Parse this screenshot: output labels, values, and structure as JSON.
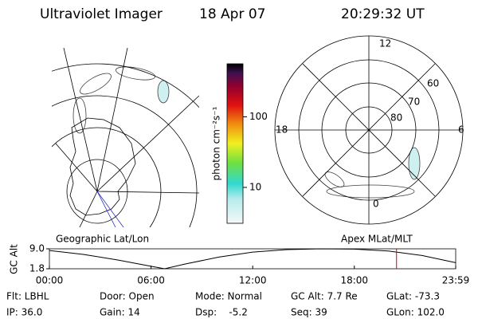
{
  "header": {
    "instrument": "Ultraviolet Imager",
    "date": "18 Apr 07",
    "time": "20:29:32 UT"
  },
  "colorbar": {
    "label": "photon cm⁻²s⁻¹",
    "clim": [
      3.1,
      565
    ],
    "scale": "log",
    "ticks": [
      {
        "value": 10,
        "label": "10"
      },
      {
        "value": 100,
        "label": "100"
      }
    ]
  },
  "polar_plot": {
    "mlt_labels": [
      "12",
      "18",
      "6",
      "0"
    ],
    "lat_labels": [
      "60",
      "70",
      "80"
    ]
  },
  "projection_labels": {
    "left": "Geographic Lat/Lon",
    "right": "Apex MLat/MLT"
  },
  "chart_data": {
    "type": "line",
    "ylabel": "GC Alt",
    "x": [
      0,
      2,
      4,
      6,
      6.8,
      8,
      10,
      12,
      14,
      16,
      18,
      20,
      22,
      23.983
    ],
    "series": [
      {
        "name": "GC Alt",
        "color": "#000000",
        "values": [
          8.4,
          7.0,
          5.0,
          2.7,
          1.8,
          3.5,
          6.0,
          7.8,
          8.7,
          9.0,
          8.9,
          8.2,
          6.6,
          4.0
        ]
      }
    ],
    "xlim": [
      0,
      23.983
    ],
    "xticks": [
      {
        "value": 0,
        "label": "00:00"
      },
      {
        "value": 6,
        "label": "06:00"
      },
      {
        "value": 12,
        "label": "12:00"
      },
      {
        "value": 18,
        "label": "18:00"
      },
      {
        "value": 23.983,
        "label": "23:59"
      }
    ],
    "ylim": [
      1.8,
      9.0
    ],
    "yticks": [
      {
        "value": 1.8,
        "label": "1.8"
      },
      {
        "value": 9.0,
        "label": "9.0"
      }
    ],
    "marker": {
      "x": 20.49,
      "color": "#e00000"
    }
  },
  "info": {
    "rows": [
      [
        "Flt: LBHL",
        "Door: Open",
        "Mode: Normal",
        "GC Alt: 7.7 Re",
        "GLat: -73.3"
      ],
      [
        "IP: 36.0",
        "Gain: 14",
        "Dsp:    -5.2",
        "Seq: 39",
        "GLon: 102.0"
      ]
    ]
  }
}
